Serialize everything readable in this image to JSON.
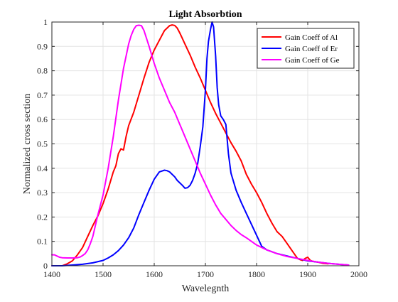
{
  "chart_data": {
    "type": "line",
    "title": "Light Absorbtion",
    "xlabel": "Wavelegnth",
    "ylabel": "Normalized cross section",
    "xlim": [
      1400,
      2000
    ],
    "ylim": [
      0,
      1
    ],
    "xticks": [
      1400,
      1500,
      1600,
      1700,
      1800,
      1900,
      2000
    ],
    "yticks": [
      0,
      0.1,
      0.2,
      0.3,
      0.4,
      0.5,
      0.6,
      0.7,
      0.8,
      0.9,
      1
    ],
    "grid": true,
    "legend_position": "top-right",
    "series": [
      {
        "name": "Gain Coeff of Al",
        "color": "#ff0000",
        "x": [
          1400,
          1420,
          1430,
          1440,
          1450,
          1460,
          1470,
          1480,
          1490,
          1500,
          1510,
          1520,
          1525,
          1530,
          1535,
          1540,
          1545,
          1550,
          1560,
          1570,
          1580,
          1590,
          1600,
          1610,
          1620,
          1625,
          1630,
          1635,
          1640,
          1645,
          1650,
          1660,
          1670,
          1680,
          1690,
          1700,
          1710,
          1720,
          1730,
          1740,
          1750,
          1760,
          1770,
          1780,
          1790,
          1800,
          1810,
          1820,
          1830,
          1840,
          1850,
          1860,
          1870,
          1880,
          1885,
          1890,
          1895,
          1900,
          1905,
          1910,
          1920,
          1930,
          1940
        ],
        "y": [
          0.0,
          0.0,
          0.008,
          0.02,
          0.045,
          0.075,
          0.12,
          0.165,
          0.205,
          0.255,
          0.315,
          0.385,
          0.41,
          0.46,
          0.48,
          0.475,
          0.53,
          0.575,
          0.63,
          0.7,
          0.77,
          0.835,
          0.885,
          0.925,
          0.965,
          0.975,
          0.985,
          0.988,
          0.986,
          0.975,
          0.955,
          0.91,
          0.865,
          0.815,
          0.77,
          0.72,
          0.67,
          0.625,
          0.585,
          0.545,
          0.505,
          0.47,
          0.43,
          0.375,
          0.335,
          0.3,
          0.26,
          0.215,
          0.175,
          0.14,
          0.12,
          0.09,
          0.06,
          0.03,
          0.025,
          0.022,
          0.03,
          0.035,
          0.022,
          0.018,
          0.015,
          0.01,
          0.008
        ]
      },
      {
        "name": "Gain Coeff of Er",
        "color": "#0000ff",
        "x": [
          1400,
          1420,
          1440,
          1460,
          1480,
          1500,
          1510,
          1520,
          1530,
          1540,
          1550,
          1560,
          1570,
          1580,
          1590,
          1600,
          1610,
          1620,
          1625,
          1630,
          1640,
          1645,
          1650,
          1655,
          1660,
          1665,
          1670,
          1675,
          1680,
          1685,
          1690,
          1695,
          1700,
          1703,
          1706,
          1710,
          1713,
          1716,
          1720,
          1723,
          1726,
          1730,
          1735,
          1740,
          1745,
          1750,
          1760,
          1770,
          1780,
          1790,
          1800,
          1810,
          1820,
          1840,
          1860,
          1880,
          1900,
          1920,
          1940,
          1960,
          1980
        ],
        "y": [
          0.0,
          0.0,
          0.003,
          0.006,
          0.012,
          0.022,
          0.032,
          0.045,
          0.062,
          0.085,
          0.115,
          0.155,
          0.21,
          0.26,
          0.31,
          0.355,
          0.385,
          0.392,
          0.39,
          0.385,
          0.365,
          0.35,
          0.34,
          0.33,
          0.318,
          0.32,
          0.33,
          0.35,
          0.38,
          0.42,
          0.49,
          0.57,
          0.72,
          0.85,
          0.92,
          0.97,
          1.0,
          0.98,
          0.86,
          0.73,
          0.66,
          0.615,
          0.6,
          0.58,
          0.46,
          0.38,
          0.31,
          0.26,
          0.215,
          0.17,
          0.125,
          0.08,
          0.065,
          0.05,
          0.04,
          0.03,
          0.02,
          0.015,
          0.01,
          0.006,
          0.003
        ]
      },
      {
        "name": "Gain Coeff of Ge",
        "color": "#ff00ff",
        "x": [
          1400,
          1405,
          1410,
          1415,
          1420,
          1430,
          1440,
          1450,
          1455,
          1460,
          1465,
          1470,
          1475,
          1480,
          1485,
          1490,
          1500,
          1510,
          1520,
          1530,
          1540,
          1550,
          1555,
          1560,
          1565,
          1570,
          1575,
          1580,
          1590,
          1600,
          1610,
          1620,
          1630,
          1640,
          1650,
          1660,
          1670,
          1680,
          1690,
          1700,
          1710,
          1720,
          1730,
          1740,
          1750,
          1760,
          1770,
          1780,
          1790,
          1800,
          1820,
          1840,
          1860,
          1880,
          1900,
          1920,
          1940,
          1960,
          1980
        ],
        "y": [
          0.045,
          0.045,
          0.04,
          0.035,
          0.033,
          0.032,
          0.032,
          0.033,
          0.036,
          0.042,
          0.05,
          0.065,
          0.09,
          0.12,
          0.165,
          0.21,
          0.29,
          0.4,
          0.53,
          0.68,
          0.81,
          0.91,
          0.945,
          0.97,
          0.985,
          0.987,
          0.985,
          0.965,
          0.9,
          0.83,
          0.77,
          0.72,
          0.67,
          0.63,
          0.58,
          0.53,
          0.48,
          0.43,
          0.38,
          0.335,
          0.29,
          0.25,
          0.215,
          0.19,
          0.165,
          0.145,
          0.128,
          0.115,
          0.1,
          0.085,
          0.065,
          0.05,
          0.038,
          0.03,
          0.022,
          0.015,
          0.01,
          0.006,
          0.003
        ]
      }
    ]
  }
}
